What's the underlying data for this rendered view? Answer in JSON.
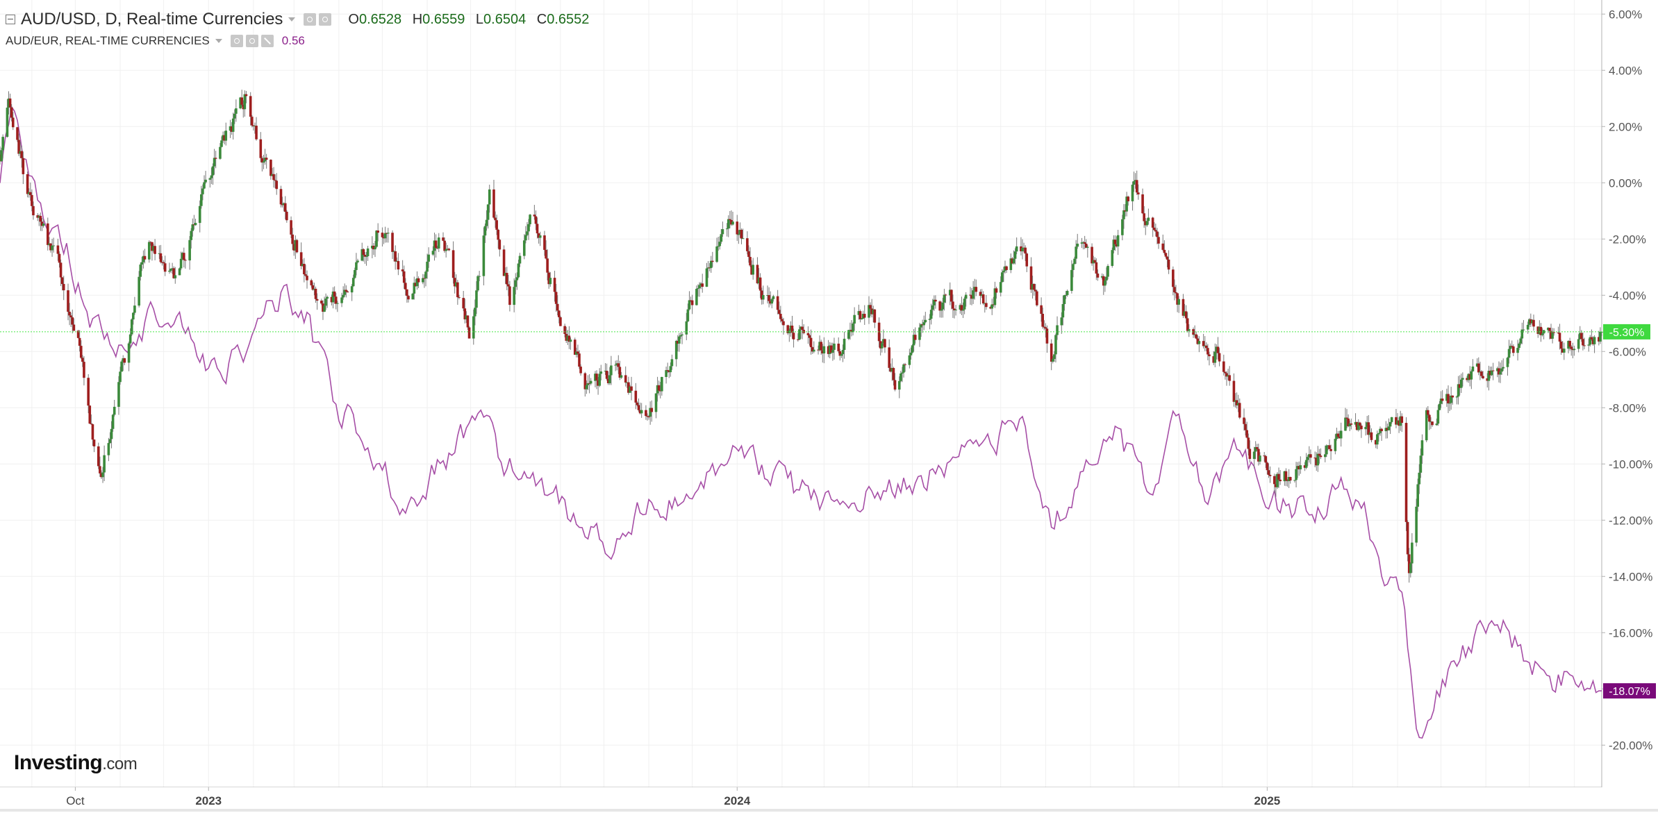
{
  "legend": {
    "main_symbol": "AUD/USD, D, Real-time Currencies",
    "ohlc": {
      "open_label": "O",
      "open": "0.6528",
      "high_label": "H",
      "high": "0.6559",
      "low_label": "L",
      "low": "0.6504",
      "close_label": "C",
      "close": "0.6552"
    },
    "compare_symbol": "AUD/EUR, REAL-TIME CURRENCIES",
    "compare_value": "0.56",
    "icons": [
      "collapse-icon",
      "caret-down-icon",
      "settings-icon",
      "gear-icon",
      "close-icon"
    ]
  },
  "branding": {
    "name": "Investing",
    "suffix": ".com"
  },
  "colors": {
    "up_candle": "#3b8a3b",
    "down_candle": "#9e1e1e",
    "compare_line": "#a64ea6",
    "current_line": "#49e649",
    "current_badge": "#3fd93f",
    "compare_badge": "#7a0a7a",
    "grid": "#f0f0f0",
    "axis": "#b0b0b0"
  },
  "chart_data": {
    "type": "line",
    "chart_style": "candlestick with comparison line",
    "x_axis": {
      "tick_labels": [
        {
          "label": "Oct",
          "date": "2022-10-01"
        },
        {
          "label": "2023",
          "date": "2023-01-01"
        },
        {
          "label": "2024",
          "date": "2024-01-01"
        },
        {
          "label": "2025",
          "date": "2025-01-01"
        }
      ],
      "range": [
        "2022-08-10",
        "2025-08-20"
      ]
    },
    "y_axis": {
      "side": "right",
      "unit": "%",
      "range": [
        -21.5,
        6.5
      ],
      "ticks": [
        6,
        4,
        2,
        0,
        -2,
        -4,
        -6,
        -8,
        -10,
        -12,
        -14,
        -16,
        -18,
        -20
      ],
      "tick_labels": [
        "6.00%",
        "4.00%",
        "2.00%",
        "0.00%",
        "-2.00%",
        "-4.00%",
        "-6.00%",
        "-8.00%",
        "-10.00%",
        "-12.00%",
        "-14.00%",
        "-16.00%",
        "-18.00%",
        "-20.00%"
      ]
    },
    "grid": true,
    "series": [
      {
        "name": "AUD/USD, D, Real-time Currencies",
        "style": "candlestick",
        "current_value": -5.3,
        "current_label": "-5.30%",
        "points": [
          [
            "2022-08-10",
            1.0
          ],
          [
            "2022-08-16",
            3.0
          ],
          [
            "2022-08-30",
            -0.5
          ],
          [
            "2022-09-20",
            -3.0
          ],
          [
            "2022-10-05",
            -6.0
          ],
          [
            "2022-10-13",
            -9.0
          ],
          [
            "2022-10-20",
            -10.2
          ],
          [
            "2022-11-05",
            -6.0
          ],
          [
            "2022-11-20",
            -2.0
          ],
          [
            "2022-12-10",
            -3.5
          ],
          [
            "2022-12-30",
            0.0
          ],
          [
            "2023-01-26",
            3.0
          ],
          [
            "2023-02-10",
            0.5
          ],
          [
            "2023-03-01",
            -2.0
          ],
          [
            "2023-03-20",
            -4.5
          ],
          [
            "2023-04-10",
            -3.5
          ],
          [
            "2023-04-30",
            -1.5
          ],
          [
            "2023-05-20",
            -4.0
          ],
          [
            "2023-06-10",
            -1.8
          ],
          [
            "2023-07-01",
            -5.5
          ],
          [
            "2023-07-14",
            -0.5
          ],
          [
            "2023-07-28",
            -4.2
          ],
          [
            "2023-08-12",
            -0.6
          ],
          [
            "2023-09-01",
            -5.0
          ],
          [
            "2023-09-20",
            -7.3
          ],
          [
            "2023-10-10",
            -6.5
          ],
          [
            "2023-10-30",
            -8.5
          ],
          [
            "2023-11-25",
            -5.0
          ],
          [
            "2023-12-28",
            -1.2
          ],
          [
            "2024-01-20",
            -4.0
          ],
          [
            "2024-02-15",
            -5.5
          ],
          [
            "2024-03-10",
            -6.0
          ],
          [
            "2024-04-01",
            -4.2
          ],
          [
            "2024-04-20",
            -7.3
          ],
          [
            "2024-05-10",
            -4.5
          ],
          [
            "2024-05-30",
            -4.2
          ],
          [
            "2024-06-25",
            -4.0
          ],
          [
            "2024-07-15",
            -2.3
          ],
          [
            "2024-08-05",
            -6.0
          ],
          [
            "2024-08-25",
            -2.0
          ],
          [
            "2024-09-10",
            -3.5
          ],
          [
            "2024-09-30",
            0.0
          ],
          [
            "2024-10-25",
            -3.2
          ],
          [
            "2024-11-10",
            -5.5
          ],
          [
            "2024-12-01",
            -6.2
          ],
          [
            "2024-12-20",
            -9.5
          ],
          [
            "2025-01-10",
            -10.5
          ],
          [
            "2025-02-01",
            -10.0
          ],
          [
            "2025-02-25",
            -8.5
          ],
          [
            "2025-03-20",
            -9.0
          ],
          [
            "2025-04-04",
            -8.5
          ],
          [
            "2025-04-09",
            -14.0
          ],
          [
            "2025-04-20",
            -8.5
          ],
          [
            "2025-05-20",
            -7.0
          ],
          [
            "2025-06-10",
            -6.5
          ],
          [
            "2025-07-05",
            -5.0
          ],
          [
            "2025-07-25",
            -5.8
          ],
          [
            "2025-08-20",
            -5.3
          ]
        ]
      },
      {
        "name": "AUD/EUR, REAL-TIME CURRENCIES",
        "style": "line",
        "current_value": -18.07,
        "current_label": "-18.07%",
        "points": [
          [
            "2022-08-10",
            0.0
          ],
          [
            "2022-08-18",
            2.5
          ],
          [
            "2022-09-05",
            -0.5
          ],
          [
            "2022-09-25",
            -2.0
          ],
          [
            "2022-10-05",
            -4.0
          ],
          [
            "2022-10-20",
            -5.5
          ],
          [
            "2022-11-05",
            -6.0
          ],
          [
            "2022-11-25",
            -4.5
          ],
          [
            "2022-12-20",
            -5.5
          ],
          [
            "2023-01-10",
            -7.0
          ],
          [
            "2023-02-01",
            -5.5
          ],
          [
            "2023-02-20",
            -4.0
          ],
          [
            "2023-03-10",
            -5.0
          ],
          [
            "2023-04-01",
            -8.0
          ],
          [
            "2023-04-20",
            -9.0
          ],
          [
            "2023-05-15",
            -11.5
          ],
          [
            "2023-06-10",
            -10.0
          ],
          [
            "2023-07-10",
            -8.0
          ],
          [
            "2023-07-25",
            -10.5
          ],
          [
            "2023-08-10",
            -10.0
          ],
          [
            "2023-09-01",
            -11.5
          ],
          [
            "2023-10-01",
            -13.0
          ],
          [
            "2023-10-25",
            -11.5
          ],
          [
            "2023-12-01",
            -11.0
          ],
          [
            "2024-01-01",
            -9.3
          ],
          [
            "2024-02-10",
            -11.0
          ],
          [
            "2024-03-10",
            -11.3
          ],
          [
            "2024-04-10",
            -11.0
          ],
          [
            "2024-05-15",
            -10.3
          ],
          [
            "2024-06-15",
            -9.5
          ],
          [
            "2024-07-15",
            -8.5
          ],
          [
            "2024-08-05",
            -12.5
          ],
          [
            "2024-08-25",
            -10.5
          ],
          [
            "2024-09-20",
            -9.0
          ],
          [
            "2024-10-10",
            -11.0
          ],
          [
            "2024-10-30",
            -8.5
          ],
          [
            "2024-11-20",
            -11.0
          ],
          [
            "2024-12-10",
            -9.5
          ],
          [
            "2025-01-10",
            -11.5
          ],
          [
            "2025-01-25",
            -11.5
          ],
          [
            "2025-02-05",
            -11.8
          ],
          [
            "2025-02-20",
            -11.0
          ],
          [
            "2025-03-10",
            -12.0
          ],
          [
            "2025-03-25",
            -14.5
          ],
          [
            "2025-04-05",
            -15.0
          ],
          [
            "2025-04-14",
            -20.0
          ],
          [
            "2025-04-28",
            -18.0
          ],
          [
            "2025-05-15",
            -17.0
          ],
          [
            "2025-06-05",
            -15.5
          ],
          [
            "2025-06-25",
            -16.5
          ],
          [
            "2025-07-15",
            -17.8
          ],
          [
            "2025-08-01",
            -17.5
          ],
          [
            "2025-08-20",
            -18.07
          ]
        ]
      }
    ],
    "reference_line": {
      "value": -5.3,
      "style": "dotted"
    }
  }
}
